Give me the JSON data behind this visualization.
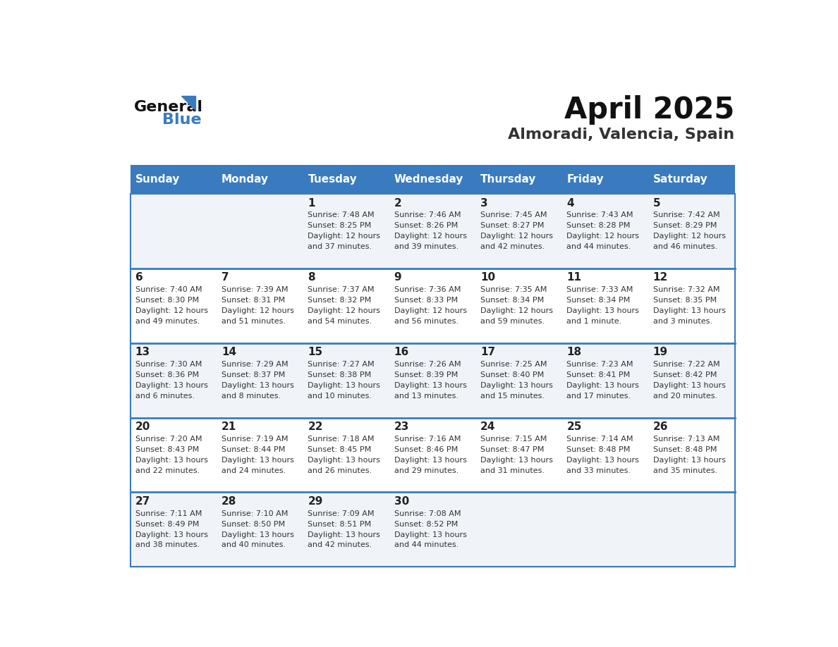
{
  "title": "April 2025",
  "subtitle": "Almoradi, Valencia, Spain",
  "header_bg": "#3a7bbf",
  "header_text": "#ffffff",
  "day_names": [
    "Sunday",
    "Monday",
    "Tuesday",
    "Wednesday",
    "Thursday",
    "Friday",
    "Saturday"
  ],
  "row_bg_odd": "#f0f4f8",
  "row_bg_even": "#ffffff",
  "separator_color": "#3a7bbf",
  "cell_text_color": "#333333",
  "day_number_color": "#222222",
  "calendar": [
    [
      {
        "day": null,
        "sunrise": null,
        "sunset": null,
        "daylight_line1": null,
        "daylight_line2": null
      },
      {
        "day": null,
        "sunrise": null,
        "sunset": null,
        "daylight_line1": null,
        "daylight_line2": null
      },
      {
        "day": 1,
        "sunrise": "7:48 AM",
        "sunset": "8:25 PM",
        "daylight_line1": "12 hours",
        "daylight_line2": "and 37 minutes."
      },
      {
        "day": 2,
        "sunrise": "7:46 AM",
        "sunset": "8:26 PM",
        "daylight_line1": "12 hours",
        "daylight_line2": "and 39 minutes."
      },
      {
        "day": 3,
        "sunrise": "7:45 AM",
        "sunset": "8:27 PM",
        "daylight_line1": "12 hours",
        "daylight_line2": "and 42 minutes."
      },
      {
        "day": 4,
        "sunrise": "7:43 AM",
        "sunset": "8:28 PM",
        "daylight_line1": "12 hours",
        "daylight_line2": "and 44 minutes."
      },
      {
        "day": 5,
        "sunrise": "7:42 AM",
        "sunset": "8:29 PM",
        "daylight_line1": "12 hours",
        "daylight_line2": "and 46 minutes."
      }
    ],
    [
      {
        "day": 6,
        "sunrise": "7:40 AM",
        "sunset": "8:30 PM",
        "daylight_line1": "12 hours",
        "daylight_line2": "and 49 minutes."
      },
      {
        "day": 7,
        "sunrise": "7:39 AM",
        "sunset": "8:31 PM",
        "daylight_line1": "12 hours",
        "daylight_line2": "and 51 minutes."
      },
      {
        "day": 8,
        "sunrise": "7:37 AM",
        "sunset": "8:32 PM",
        "daylight_line1": "12 hours",
        "daylight_line2": "and 54 minutes."
      },
      {
        "day": 9,
        "sunrise": "7:36 AM",
        "sunset": "8:33 PM",
        "daylight_line1": "12 hours",
        "daylight_line2": "and 56 minutes."
      },
      {
        "day": 10,
        "sunrise": "7:35 AM",
        "sunset": "8:34 PM",
        "daylight_line1": "12 hours",
        "daylight_line2": "and 59 minutes."
      },
      {
        "day": 11,
        "sunrise": "7:33 AM",
        "sunset": "8:34 PM",
        "daylight_line1": "13 hours",
        "daylight_line2": "and 1 minute."
      },
      {
        "day": 12,
        "sunrise": "7:32 AM",
        "sunset": "8:35 PM",
        "daylight_line1": "13 hours",
        "daylight_line2": "and 3 minutes."
      }
    ],
    [
      {
        "day": 13,
        "sunrise": "7:30 AM",
        "sunset": "8:36 PM",
        "daylight_line1": "13 hours",
        "daylight_line2": "and 6 minutes."
      },
      {
        "day": 14,
        "sunrise": "7:29 AM",
        "sunset": "8:37 PM",
        "daylight_line1": "13 hours",
        "daylight_line2": "and 8 minutes."
      },
      {
        "day": 15,
        "sunrise": "7:27 AM",
        "sunset": "8:38 PM",
        "daylight_line1": "13 hours",
        "daylight_line2": "and 10 minutes."
      },
      {
        "day": 16,
        "sunrise": "7:26 AM",
        "sunset": "8:39 PM",
        "daylight_line1": "13 hours",
        "daylight_line2": "and 13 minutes."
      },
      {
        "day": 17,
        "sunrise": "7:25 AM",
        "sunset": "8:40 PM",
        "daylight_line1": "13 hours",
        "daylight_line2": "and 15 minutes."
      },
      {
        "day": 18,
        "sunrise": "7:23 AM",
        "sunset": "8:41 PM",
        "daylight_line1": "13 hours",
        "daylight_line2": "and 17 minutes."
      },
      {
        "day": 19,
        "sunrise": "7:22 AM",
        "sunset": "8:42 PM",
        "daylight_line1": "13 hours",
        "daylight_line2": "and 20 minutes."
      }
    ],
    [
      {
        "day": 20,
        "sunrise": "7:20 AM",
        "sunset": "8:43 PM",
        "daylight_line1": "13 hours",
        "daylight_line2": "and 22 minutes."
      },
      {
        "day": 21,
        "sunrise": "7:19 AM",
        "sunset": "8:44 PM",
        "daylight_line1": "13 hours",
        "daylight_line2": "and 24 minutes."
      },
      {
        "day": 22,
        "sunrise": "7:18 AM",
        "sunset": "8:45 PM",
        "daylight_line1": "13 hours",
        "daylight_line2": "and 26 minutes."
      },
      {
        "day": 23,
        "sunrise": "7:16 AM",
        "sunset": "8:46 PM",
        "daylight_line1": "13 hours",
        "daylight_line2": "and 29 minutes."
      },
      {
        "day": 24,
        "sunrise": "7:15 AM",
        "sunset": "8:47 PM",
        "daylight_line1": "13 hours",
        "daylight_line2": "and 31 minutes."
      },
      {
        "day": 25,
        "sunrise": "7:14 AM",
        "sunset": "8:48 PM",
        "daylight_line1": "13 hours",
        "daylight_line2": "and 33 minutes."
      },
      {
        "day": 26,
        "sunrise": "7:13 AM",
        "sunset": "8:48 PM",
        "daylight_line1": "13 hours",
        "daylight_line2": "and 35 minutes."
      }
    ],
    [
      {
        "day": 27,
        "sunrise": "7:11 AM",
        "sunset": "8:49 PM",
        "daylight_line1": "13 hours",
        "daylight_line2": "and 38 minutes."
      },
      {
        "day": 28,
        "sunrise": "7:10 AM",
        "sunset": "8:50 PM",
        "daylight_line1": "13 hours",
        "daylight_line2": "and 40 minutes."
      },
      {
        "day": 29,
        "sunrise": "7:09 AM",
        "sunset": "8:51 PM",
        "daylight_line1": "13 hours",
        "daylight_line2": "and 42 minutes."
      },
      {
        "day": 30,
        "sunrise": "7:08 AM",
        "sunset": "8:52 PM",
        "daylight_line1": "13 hours",
        "daylight_line2": "and 44 minutes."
      },
      {
        "day": null,
        "sunrise": null,
        "sunset": null,
        "daylight_line1": null,
        "daylight_line2": null
      },
      {
        "day": null,
        "sunrise": null,
        "sunset": null,
        "daylight_line1": null,
        "daylight_line2": null
      },
      {
        "day": null,
        "sunrise": null,
        "sunset": null,
        "daylight_line1": null,
        "daylight_line2": null
      }
    ]
  ]
}
